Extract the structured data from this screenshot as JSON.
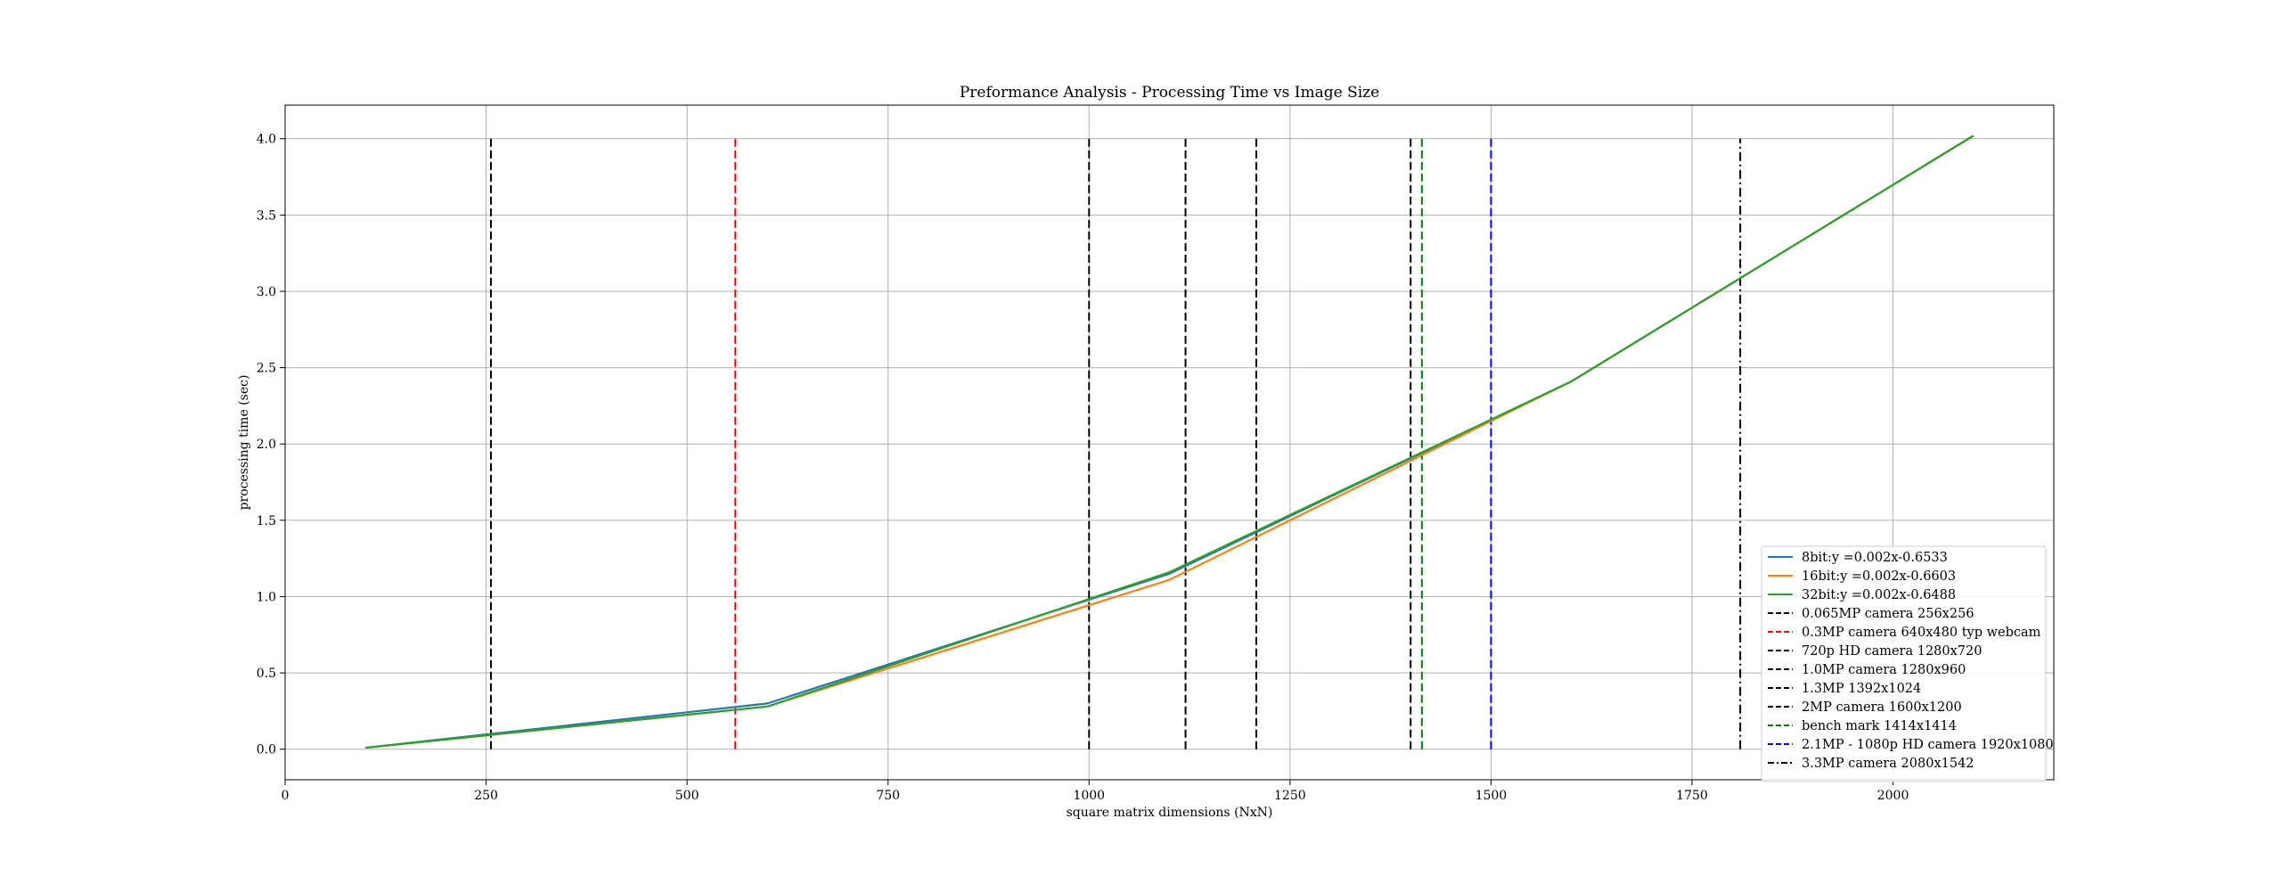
{
  "chart_data": {
    "type": "line",
    "title": "Preformance Analysis - Processing Time vs Image Size",
    "xlabel": "square matrix dimensions (NxN)",
    "ylabel": "processing time (sec)",
    "xlim": [
      0,
      2200
    ],
    "ylim": [
      -0.2,
      4.22
    ],
    "xticks": [
      0,
      250,
      500,
      750,
      1000,
      1250,
      1500,
      1750,
      2000
    ],
    "yticks": [
      0.0,
      0.5,
      1.0,
      1.5,
      2.0,
      2.5,
      3.0,
      3.5,
      4.0
    ],
    "grid": true,
    "legend_position": "lower-right",
    "series": [
      {
        "name": "8bit:y =0.002x-0.6533",
        "color": "#1f77b4",
        "style": "solid",
        "x": [
          100,
          600,
          1100,
          1600,
          2100
        ],
        "y": [
          0.01,
          0.3,
          1.15,
          2.41,
          4.02
        ]
      },
      {
        "name": "16bit:y =0.002x-0.6603",
        "color": "#ff7f0e",
        "style": "solid",
        "x": [
          100,
          600,
          1100,
          1600,
          2100
        ],
        "y": [
          0.01,
          0.28,
          1.11,
          2.41,
          4.02
        ]
      },
      {
        "name": "32bit:y =0.002x-0.6488",
        "color": "#2ca02c",
        "style": "solid",
        "x": [
          100,
          600,
          1100,
          1600,
          2100
        ],
        "y": [
          0.01,
          0.28,
          1.16,
          2.41,
          4.02
        ]
      }
    ],
    "vlines": [
      {
        "name": "0.065MP camera 256x256",
        "x": 256,
        "color": "#000000",
        "style": "dashed"
      },
      {
        "name": "0.3MP camera 640x480 typ webcam",
        "x": 560,
        "color": "#ff0000",
        "style": "dashed"
      },
      {
        "name": "720p HD camera 1280x720",
        "x": 1000,
        "color": "#000000",
        "style": "dashed"
      },
      {
        "name": "1.0MP camera 1280x960",
        "x": 1120,
        "color": "#000000",
        "style": "dashed"
      },
      {
        "name": "1.3MP 1392x1024",
        "x": 1208,
        "color": "#000000",
        "style": "dashed"
      },
      {
        "name": "2MP camera 1600x1200",
        "x": 1400,
        "color": "#000000",
        "style": "dashed"
      },
      {
        "name": "bench mark 1414x1414",
        "x": 1414,
        "color": "#008000",
        "style": "dashed"
      },
      {
        "name": "2.1MP - 1080p HD camera 1920x1080",
        "x": 1500,
        "color": "#0000ff",
        "style": "dashed"
      },
      {
        "name": "3.3MP camera 2080x1542",
        "x": 1810,
        "color": "#000000",
        "style": "dashdot"
      }
    ],
    "vline_range": [
      0.0,
      4.0
    ]
  }
}
